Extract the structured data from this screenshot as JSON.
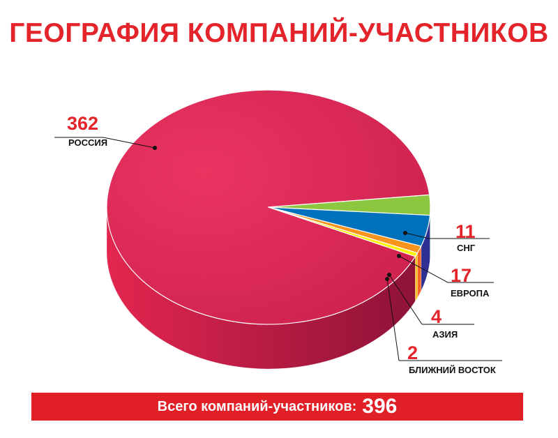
{
  "chart_data": {
    "type": "pie",
    "title": "ГЕОГРАФИЯ КОМПАНИЙ-УЧАСТНИКОВ",
    "slices": [
      {
        "label": "РОССИЯ",
        "value": 362,
        "color": "#e02b55"
      },
      {
        "label": "СНГ",
        "value": 11,
        "color": "#8dc63f"
      },
      {
        "label": "ЕВРОПА",
        "value": 17,
        "color": "#0072bc"
      },
      {
        "label": "АЗИЯ",
        "value": 4,
        "color": "#f7941d"
      },
      {
        "label": "БЛИЖНИЙ ВОСТОК",
        "value": 2,
        "color": "#fff200"
      }
    ],
    "side_colors": [
      "#a3153b",
      "#1e8f3e",
      "#2e3192",
      "#f26522",
      "#f7c51e"
    ]
  },
  "footer": {
    "text": "Всего компаний-участников:",
    "total": "396",
    "color": "#e01f26"
  }
}
